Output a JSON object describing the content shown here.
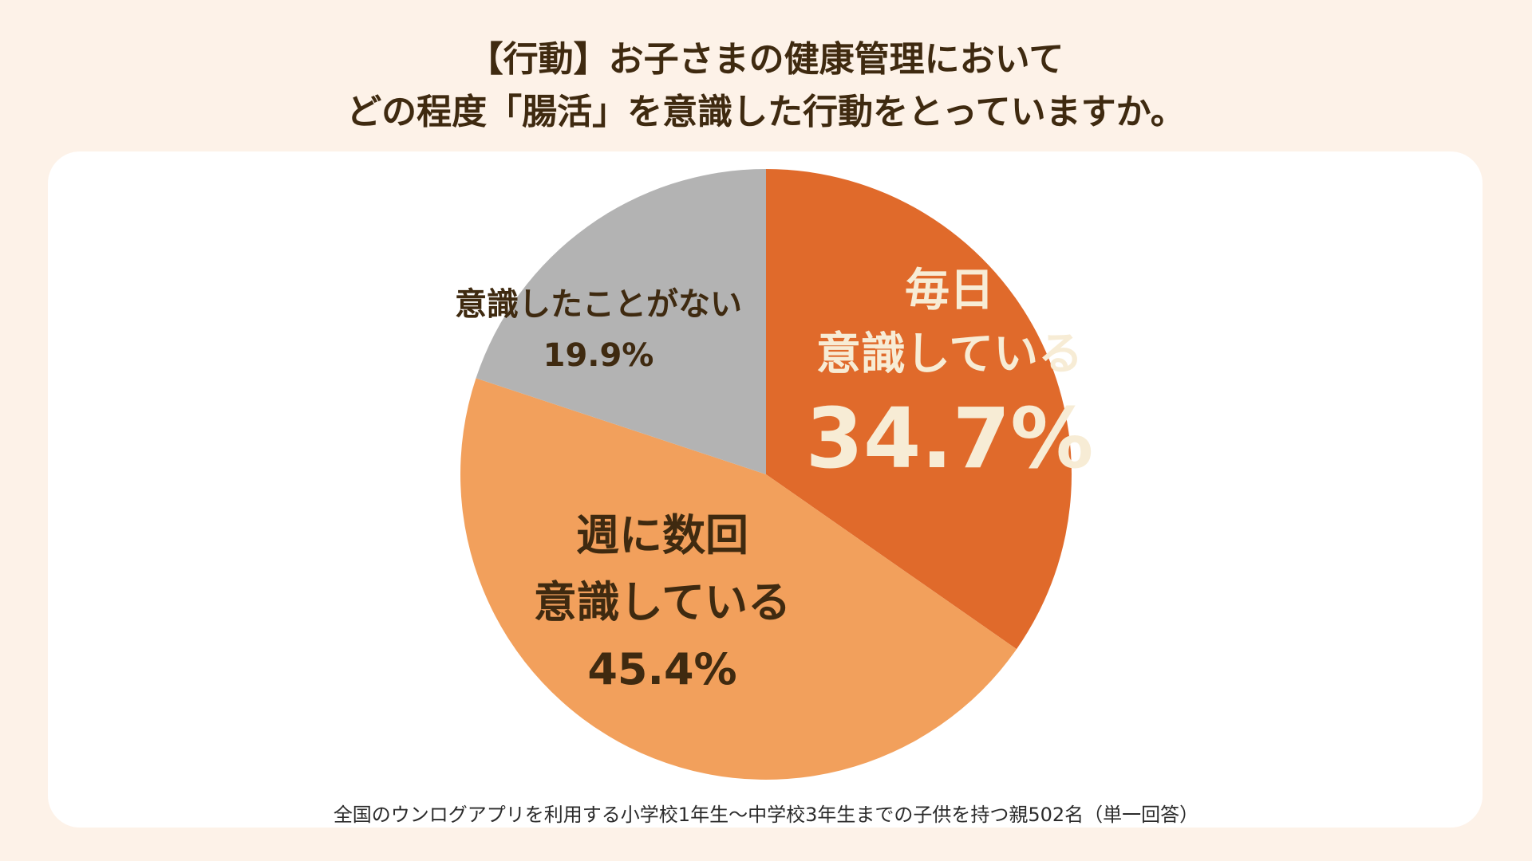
{
  "title": {
    "line1": "【行動】お子さまの健康管理において",
    "line2": "どの程度「腸活」を意識した行動をとっていますか。"
  },
  "footnote": "全国のウンログアプリを利用する小学校1年生〜中学校3年生までの子供を持つ親502名（単一回答）",
  "chart_data": {
    "type": "pie",
    "slices": [
      {
        "label_line1": "毎日",
        "label_line2": "意識している",
        "value": 34.7,
        "value_text": "34.7%",
        "color": "#e06a2b"
      },
      {
        "label_line1": "週に数回",
        "label_line2": "意識している",
        "value": 45.4,
        "value_text": "45.4%",
        "color": "#f2a05c"
      },
      {
        "label_line1": "意識したことがない",
        "label_line2": "",
        "value": 19.9,
        "value_text": "19.9%",
        "color": "#b3b3b3"
      }
    ]
  }
}
